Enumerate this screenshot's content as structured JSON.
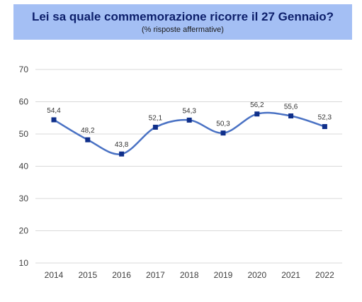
{
  "header": {
    "title": "Lei sa quale commemorazione ricorre il 27 Gennaio?",
    "subtitle": "(% risposte affermative)"
  },
  "colors": {
    "header_bg": "#a4bff4",
    "title": "#0d1f6b",
    "line": "#4a72c4",
    "marker": "#0f2f8a",
    "grid": "#d9d9d9",
    "axis_text": "#404040"
  },
  "chart_data": {
    "type": "line",
    "categories": [
      "2014",
      "2015",
      "2016",
      "2017",
      "2018",
      "2019",
      "2020",
      "2021",
      "2022"
    ],
    "series": [
      {
        "values": [
          54.4,
          48.2,
          43.8,
          52.1,
          54.3,
          50.3,
          56.2,
          55.6,
          52.3
        ],
        "labels": [
          "54,4",
          "48,2",
          "43,8",
          "52,1",
          "54,3",
          "50,3",
          "56,2",
          "55,6",
          "52,3"
        ]
      }
    ],
    "yticks": [
      "10",
      "20",
      "30",
      "40",
      "50",
      "60",
      "70"
    ],
    "ylim": [
      10,
      70
    ],
    "grid": true,
    "smooth": true,
    "markers": "square"
  }
}
